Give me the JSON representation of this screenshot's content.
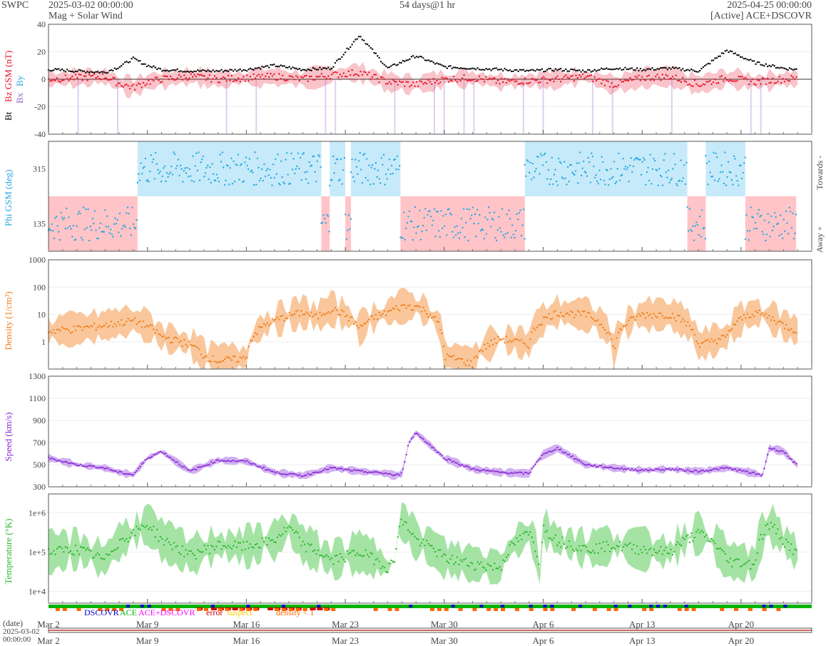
{
  "header": {
    "source": "SWPC",
    "start": "2025-03-02 00:00:00",
    "subtitle": "Mag + Solar Wind",
    "span": "54 days@1 hr",
    "end": "2025-04-25 00:00:00",
    "spacecraft": "[Active] ACE+DSCOVR"
  },
  "colors": {
    "bt": "#000000",
    "bz": "#e8142a",
    "bx": "#9966cc",
    "by": "#29a8e0",
    "phi": "#29a8e0",
    "towards_fill": "#c6eaf9",
    "away_fill": "#ffc4c8",
    "density": "#f07f1f",
    "density_fill": "#f8b982",
    "speed": "#8a2bd6",
    "speed_fill": "#caa3ef",
    "temperature": "#2eb82e",
    "temperature_fill": "#8fdc8f",
    "dscovr": "#0000cc",
    "ace": "#00b300",
    "ace_dscovr": "#ff00ff",
    "error": "#cc0000",
    "suspect": "#ffcc00",
    "density_lt1": "#ff6600"
  },
  "chart_data": [
    {
      "type": "line",
      "panel": "mag",
      "ylabel": [
        "Bt",
        "Bz GSM (nT)",
        "Bx",
        "By"
      ],
      "ylim": [
        -40,
        40
      ],
      "yticks": [
        -40,
        -20,
        0,
        20,
        40
      ],
      "x_days": [
        0,
        2,
        4,
        5,
        6,
        7,
        8,
        10,
        12,
        14,
        16,
        18,
        20,
        22,
        24,
        26,
        28,
        30,
        32,
        34,
        36,
        38,
        40,
        42,
        44,
        46,
        48,
        50,
        52,
        54
      ],
      "series": [
        {
          "name": "Bt",
          "values": [
            7,
            6,
            5,
            9,
            15,
            10,
            7,
            6,
            6,
            7,
            10,
            7,
            8,
            32,
            8,
            17,
            9,
            8,
            7,
            6,
            7,
            6,
            8,
            7,
            8,
            6,
            21,
            12,
            8,
            6
          ]
        },
        {
          "name": "Bz GSM",
          "values": [
            0,
            1,
            2,
            -3,
            -6,
            -2,
            0,
            2,
            0,
            1,
            2,
            0,
            3,
            5,
            -2,
            -4,
            0,
            1,
            -2,
            -1,
            0,
            2,
            -4,
            1,
            2,
            -4,
            1,
            -2,
            0,
            1
          ]
        }
      ]
    },
    {
      "type": "scatter",
      "panel": "phi",
      "ylabel": "Phi GSM (deg)",
      "yticks": [
        135,
        315
      ],
      "ylim": [
        45,
        405
      ],
      "side_labels": [
        "Towards -",
        "Away +"
      ],
      "sectors": [
        {
          "from": 0,
          "to": 6.3,
          "dir": "away"
        },
        {
          "from": 6.3,
          "to": 19.3,
          "dir": "towards"
        },
        {
          "from": 19.3,
          "to": 19.9,
          "dir": "away"
        },
        {
          "from": 19.9,
          "to": 21.0,
          "dir": "towards"
        },
        {
          "from": 21.0,
          "to": 21.4,
          "dir": "away"
        },
        {
          "from": 21.4,
          "to": 24.9,
          "dir": "towards"
        },
        {
          "from": 24.9,
          "to": 33.7,
          "dir": "away"
        },
        {
          "from": 33.7,
          "to": 45.2,
          "dir": "towards"
        },
        {
          "from": 45.2,
          "to": 46.5,
          "dir": "away"
        },
        {
          "from": 46.5,
          "to": 49.3,
          "dir": "towards"
        },
        {
          "from": 49.3,
          "to": 52.9,
          "dir": "away"
        }
      ]
    },
    {
      "type": "line",
      "panel": "density",
      "ylabel": "Density (1/cm³)",
      "yscale": "log",
      "ylim": [
        0.1,
        1000
      ],
      "yticks": [
        "1",
        "10",
        "100",
        "1000"
      ],
      "x_days": [
        0,
        2,
        4,
        6,
        8,
        10,
        11,
        12,
        14,
        16,
        18,
        19,
        20,
        22,
        24,
        25,
        26,
        28,
        30,
        32,
        34,
        36,
        38,
        40,
        42,
        44,
        46,
        48,
        50,
        52,
        53
      ],
      "values": [
        2.5,
        3,
        4,
        6,
        1.5,
        0.8,
        0.3,
        0.2,
        0.25,
        6,
        12,
        8,
        16,
        3,
        12,
        20,
        20,
        0.3,
        0.15,
        1.3,
        0.8,
        12,
        10,
        0.4,
        10,
        10,
        0.7,
        1.5,
        12,
        4,
        2.5
      ]
    },
    {
      "type": "line",
      "panel": "speed",
      "ylabel": "Speed (km/s)",
      "ylim": [
        300,
        1300
      ],
      "yticks": [
        300,
        500,
        700,
        900,
        1100,
        1300
      ],
      "x_days": [
        0,
        2,
        4,
        5,
        6,
        7,
        8,
        10,
        12,
        14,
        16,
        18,
        20,
        22,
        24,
        24.5,
        25,
        25.5,
        26,
        28,
        30,
        32,
        34,
        34.5,
        35,
        36,
        38,
        40,
        42,
        44,
        45,
        46,
        48,
        50,
        50.5,
        51,
        52,
        53
      ],
      "values": [
        560,
        500,
        470,
        430,
        410,
        560,
        620,
        440,
        540,
        530,
        430,
        400,
        470,
        440,
        420,
        400,
        420,
        700,
        790,
        560,
        460,
        430,
        420,
        520,
        590,
        650,
        500,
        470,
        450,
        460,
        450,
        440,
        470,
        420,
        400,
        650,
        620,
        490
      ]
    },
    {
      "type": "line",
      "panel": "temperature",
      "ylabel": "Temperature (°K)",
      "yscale": "log",
      "ylim": [
        5000,
        3000000
      ],
      "yticks": [
        "1e+4",
        "1e+5",
        "1e+6"
      ],
      "x_days": [
        0,
        2,
        4,
        6,
        7,
        8,
        10,
        12,
        14,
        16,
        17,
        18,
        20,
        22,
        24,
        24.5,
        25,
        26,
        28,
        30,
        32,
        34,
        34.8,
        35,
        36,
        38,
        40,
        42,
        44,
        45,
        46,
        48,
        50,
        51,
        52,
        53
      ],
      "values": [
        100000,
        120000,
        60000,
        300000,
        500000,
        200000,
        80000,
        150000,
        140000,
        200000,
        400000,
        150000,
        60000,
        100000,
        40000,
        60000,
        600000,
        200000,
        70000,
        50000,
        40000,
        300000,
        5000,
        400000,
        200000,
        120000,
        150000,
        120000,
        100000,
        200000,
        300000,
        60000,
        50000,
        500000,
        200000,
        80000
      ]
    },
    {
      "type": "bar",
      "panel": "source",
      "legend": [
        "DSCOVR",
        "ACE",
        "ACE+DSCOVR",
        "error",
        "suspect",
        "density < 1"
      ]
    }
  ],
  "xaxis": {
    "labels": [
      "Mar 2",
      "Mar 9",
      "Mar 16",
      "Mar 23",
      "Mar 30",
      "Apr 6",
      "Apr 13",
      "Apr 20"
    ],
    "days": [
      0,
      7,
      14,
      21,
      28,
      35,
      42,
      49
    ],
    "total_days": 54
  },
  "timeline": {
    "label": "(date)",
    "start": "2025-03-02",
    "start_time": "00:00:00"
  }
}
